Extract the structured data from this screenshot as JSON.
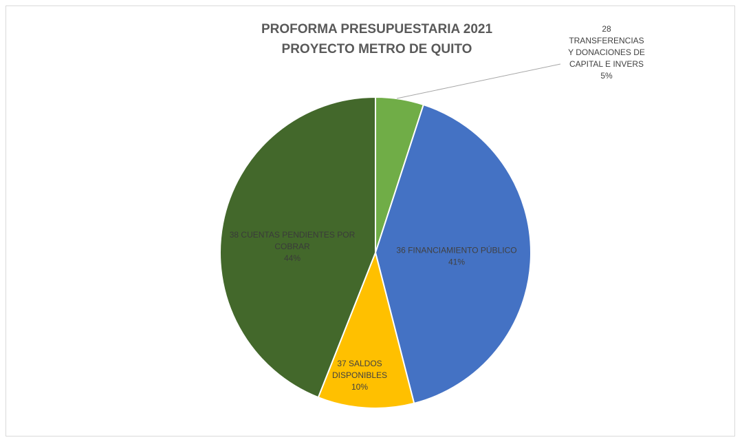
{
  "chart_data": {
    "type": "pie",
    "title": [
      "PROFORMA PRESUPUESTARIA 2021",
      "PROYECTO METRO DE QUITO"
    ],
    "slices": [
      {
        "label": [
          "28",
          "TRANSFERENCIAS",
          "Y DONACIONES DE",
          "CAPITAL E INVERS"
        ],
        "percent_label": "5%",
        "value": 5,
        "color": "#70ad47"
      },
      {
        "label": [
          "36 FINANCIAMIENTO PÚBLICO"
        ],
        "percent_label": "41%",
        "value": 41,
        "color": "#4472c4"
      },
      {
        "label": [
          "37 SALDOS",
          "DISPONIBLES"
        ],
        "percent_label": "10%",
        "value": 10,
        "color": "#ffc000"
      },
      {
        "label": [
          "38 CUENTAS PENDIENTES POR",
          "COBRAR"
        ],
        "percent_label": "44%",
        "value": 44,
        "color": "#43682b"
      }
    ],
    "label_color_on_dark": "#3a3a3a",
    "label_color_default": "#404040",
    "leader_line_color": "#a6a6a6"
  }
}
